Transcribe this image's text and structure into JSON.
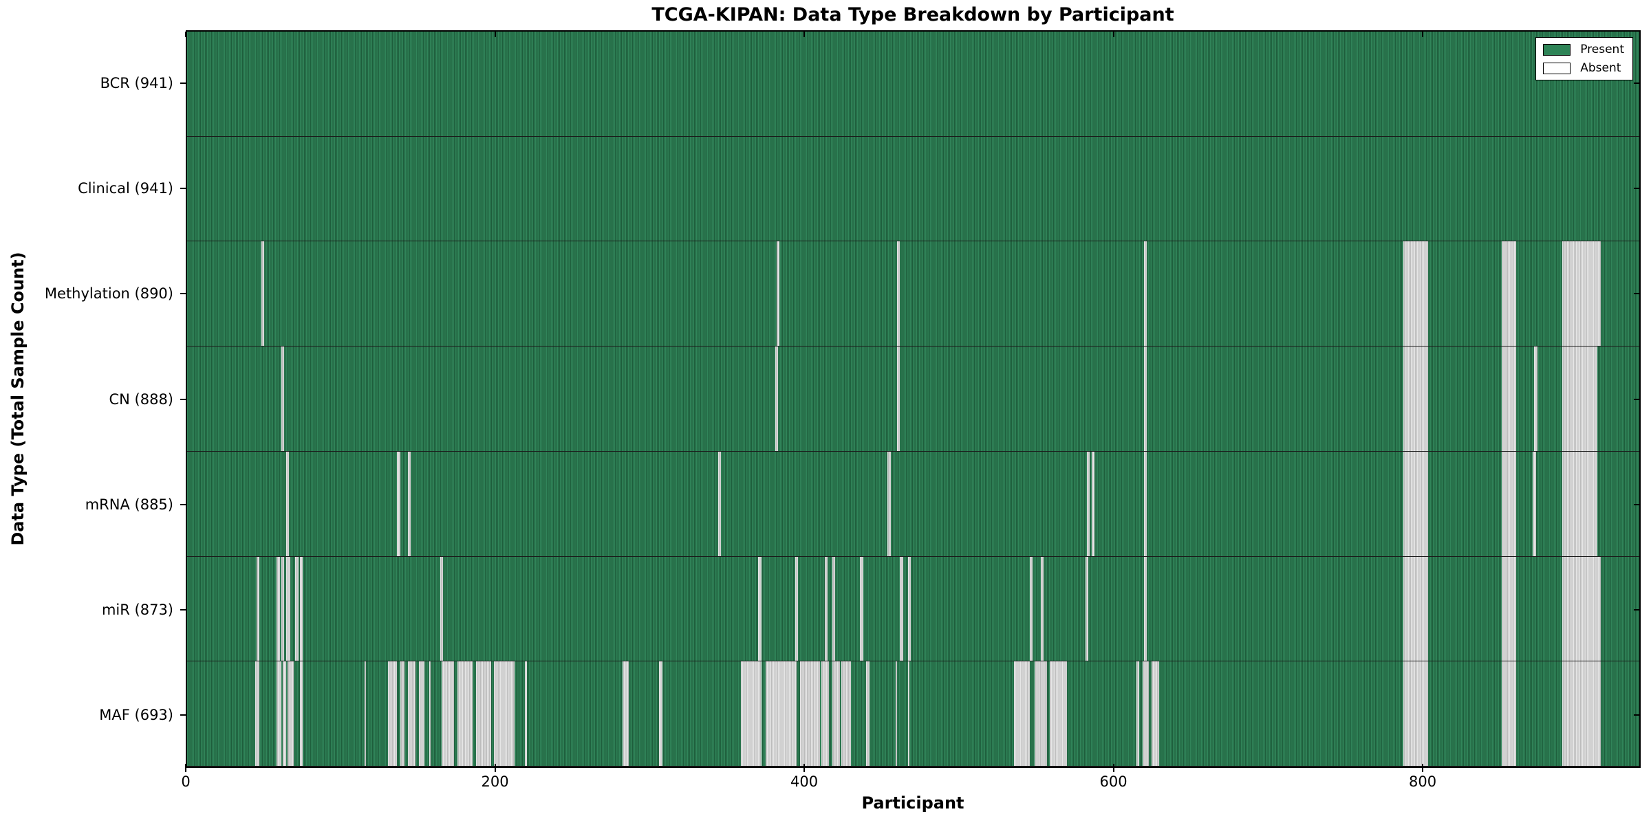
{
  "title": "TCGA-KIPAN: Data Type Breakdown by Participant",
  "chart_data": {
    "type": "heatmap",
    "title": "TCGA-KIPAN: Data Type Breakdown by Participant",
    "xlabel": "Participant",
    "ylabel": "Data Type (Total Sample Count)",
    "xlim": [
      0,
      941
    ],
    "x_ticks": [
      0,
      200,
      400,
      600,
      800
    ],
    "grid": false,
    "legend_position": "upper right",
    "legend": [
      {
        "label": "Present",
        "color": "#2e8457"
      },
      {
        "label": "Absent",
        "color": "#ffffff"
      }
    ],
    "present_color": "#2e8457",
    "absent_color": "#d9d9d9",
    "rows": [
      {
        "label": "BCR (941)",
        "data_type": "BCR",
        "count": 941,
        "absent_ranges": []
      },
      {
        "label": "Clinical (941)",
        "data_type": "Clinical",
        "count": 941,
        "absent_ranges": []
      },
      {
        "label": "Methylation (890)",
        "data_type": "Methylation",
        "count": 890,
        "absent_ranges": [
          [
            48,
            50
          ],
          [
            382,
            384
          ],
          [
            460,
            462
          ],
          [
            620,
            622
          ],
          [
            788,
            804
          ],
          [
            852,
            861
          ],
          [
            891,
            916
          ]
        ]
      },
      {
        "label": "CN (888)",
        "data_type": "CN",
        "count": 888,
        "absent_ranges": [
          [
            61,
            63
          ],
          [
            381,
            383
          ],
          [
            460,
            462
          ],
          [
            620,
            622
          ],
          [
            788,
            804
          ],
          [
            852,
            861
          ],
          [
            873,
            875
          ],
          [
            891,
            914
          ]
        ]
      },
      {
        "label": "mRNA (885)",
        "data_type": "mRNA",
        "count": 885,
        "absent_ranges": [
          [
            64,
            66
          ],
          [
            136,
            138
          ],
          [
            143,
            145
          ],
          [
            344,
            346
          ],
          [
            454,
            456
          ],
          [
            583,
            585
          ],
          [
            586,
            588
          ],
          [
            620,
            622
          ],
          [
            788,
            804
          ],
          [
            852,
            861
          ],
          [
            872,
            874
          ],
          [
            891,
            914
          ]
        ]
      },
      {
        "label": "miR (873)",
        "data_type": "miR",
        "count": 873,
        "absent_ranges": [
          [
            45,
            47
          ],
          [
            58,
            60
          ],
          [
            61,
            63
          ],
          [
            64,
            67
          ],
          [
            70,
            72
          ],
          [
            73,
            75
          ],
          [
            164,
            166
          ],
          [
            370,
            372
          ],
          [
            394,
            396
          ],
          [
            413,
            415
          ],
          [
            418,
            420
          ],
          [
            436,
            438
          ],
          [
            462,
            464
          ],
          [
            467,
            469
          ],
          [
            546,
            548
          ],
          [
            553,
            555
          ],
          [
            582,
            584
          ],
          [
            620,
            622
          ],
          [
            788,
            804
          ],
          [
            852,
            861
          ],
          [
            891,
            916
          ]
        ]
      },
      {
        "label": "MAF (693)",
        "data_type": "MAF",
        "count": 693,
        "absent_ranges": [
          [
            44,
            47
          ],
          [
            58,
            61
          ],
          [
            62,
            64
          ],
          [
            65,
            69
          ],
          [
            73,
            75
          ],
          [
            115,
            116
          ],
          [
            130,
            136
          ],
          [
            138,
            141
          ],
          [
            143,
            148
          ],
          [
            150,
            154
          ],
          [
            157,
            158
          ],
          [
            165,
            173
          ],
          [
            175,
            185
          ],
          [
            187,
            197
          ],
          [
            199,
            212
          ],
          [
            219,
            220
          ],
          [
            282,
            286
          ],
          [
            306,
            308
          ],
          [
            359,
            372
          ],
          [
            375,
            395
          ],
          [
            397,
            410
          ],
          [
            411,
            416
          ],
          [
            418,
            423
          ],
          [
            424,
            430
          ],
          [
            440,
            442
          ],
          [
            459,
            460
          ],
          [
            467,
            468
          ],
          [
            536,
            546
          ],
          [
            549,
            557
          ],
          [
            559,
            570
          ],
          [
            615,
            617
          ],
          [
            619,
            623
          ],
          [
            625,
            630
          ],
          [
            788,
            804
          ],
          [
            852,
            861
          ],
          [
            891,
            916
          ]
        ]
      }
    ]
  }
}
